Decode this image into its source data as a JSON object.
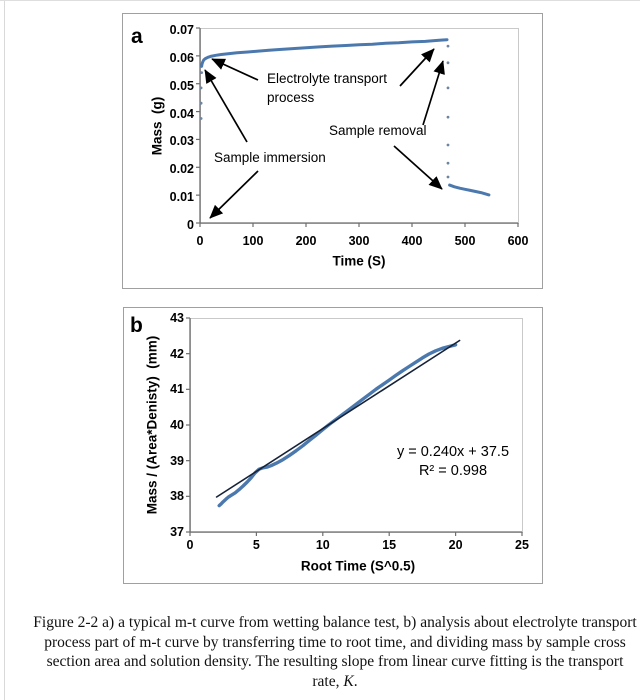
{
  "page": {
    "background": "#ffffff",
    "border_color": "#d9d9d9"
  },
  "colors": {
    "series_blue": "#4c79ad",
    "scatter_dot": "#6d84a3",
    "fit_line": "#152238",
    "panel_border": "#a0a0a0",
    "plot_border": "#c9c9c9",
    "axis_line": "#6e6e6e"
  },
  "panel_a": {
    "label": "a",
    "ylabel": "Mass  (g)",
    "xlabel": "Time (S)",
    "annotations": {
      "electrolyte_line1": "Electrolyte transport",
      "electrolyte_line2": "process",
      "immersion": "Sample immersion",
      "removal": "Sample removal"
    }
  },
  "panel_b": {
    "label": "b",
    "ylabel": "Mass / (Area*Denisty)  (mm)",
    "xlabel": "Root Time (S^0.5)",
    "fit_equation": "y = 0.240x + 37.5",
    "fit_r2": "R² = 0.998"
  },
  "caption": {
    "lines": [
      "Figure 2-2 a) a typical m-t curve from wetting balance test, b) analysis about electrolyte transport",
      "process part of m-t curve by transferring time to root time, and dividing mass by sample cross",
      "section area and solution density. The resulting slope from linear curve fitting is the transport"
    ],
    "rate_prefix": "rate, ",
    "rate_k": "K",
    "rate_suffix": "."
  },
  "chart_data": [
    {
      "id": "a",
      "type": "line",
      "title": "",
      "xlabel": "Time (S)",
      "ylabel": "Mass (g)",
      "xlim": [
        0,
        600
      ],
      "ylim": [
        0,
        0.07
      ],
      "grid": false,
      "xticks": [
        {
          "v": 0,
          "label": "0"
        },
        {
          "v": 100,
          "label": "100"
        },
        {
          "v": 200,
          "label": "200"
        },
        {
          "v": 300,
          "label": "300"
        },
        {
          "v": 400,
          "label": "400"
        },
        {
          "v": 500,
          "label": "500"
        },
        {
          "v": 600,
          "label": "600"
        }
      ],
      "yticks": [
        {
          "v": 0,
          "label": "0"
        },
        {
          "v": 0.01,
          "label": "0.01"
        },
        {
          "v": 0.02,
          "label": "0.02"
        },
        {
          "v": 0.03,
          "label": "0.03"
        },
        {
          "v": 0.04,
          "label": "0.04"
        },
        {
          "v": 0.05,
          "label": "0.05"
        },
        {
          "v": 0.06,
          "label": "0.06"
        },
        {
          "v": 0.07,
          "label": "0.07"
        }
      ],
      "annotations": [
        "Electrolyte transport process",
        "Sample immersion",
        "Sample removal"
      ],
      "series": [
        {
          "name": "sample immersion jump (dots)",
          "type": "scatter",
          "color": "#6d84a3",
          "r": 1.4,
          "points": [
            [
              2,
              0.0375
            ],
            [
              2,
              0.043
            ],
            [
              2,
              0.0485
            ],
            [
              3,
              0.054
            ]
          ]
        },
        {
          "name": "electrolyte transport curve",
          "type": "line",
          "color": "#4c79ad",
          "width": 3,
          "points": [
            [
              3,
              0.0562
            ],
            [
              4,
              0.0572
            ],
            [
              5,
              0.0578
            ],
            [
              7,
              0.0585
            ],
            [
              10,
              0.059
            ],
            [
              15,
              0.0595
            ],
            [
              20,
              0.0598
            ],
            [
              30,
              0.0602
            ],
            [
              40,
              0.0605
            ],
            [
              55,
              0.0608
            ],
            [
              70,
              0.0611
            ],
            [
              90,
              0.0614
            ],
            [
              110,
              0.0617
            ],
            [
              130,
              0.062
            ],
            [
              150,
              0.0623
            ],
            [
              175,
              0.0626
            ],
            [
              200,
              0.0629
            ],
            [
              225,
              0.0632
            ],
            [
              250,
              0.0635
            ],
            [
              275,
              0.0637
            ],
            [
              300,
              0.064
            ],
            [
              325,
              0.0642
            ],
            [
              350,
              0.0645
            ],
            [
              375,
              0.0647
            ],
            [
              400,
              0.065
            ],
            [
              425,
              0.0652
            ],
            [
              445,
              0.0655
            ],
            [
              458,
              0.0657
            ],
            [
              466,
              0.0658
            ]
          ]
        },
        {
          "name": "sample removal drop (dots)",
          "type": "scatter",
          "color": "#6d84a3",
          "r": 1.4,
          "points": [
            [
              468,
              0.0635
            ],
            [
              468,
              0.0575
            ],
            [
              468,
              0.0485
            ],
            [
              468,
              0.038
            ],
            [
              468,
              0.028
            ],
            [
              468,
              0.0215
            ],
            [
              468,
              0.0165
            ]
          ]
        },
        {
          "name": "after removal curve",
          "type": "line",
          "color": "#4c79ad",
          "width": 3,
          "points": [
            [
              471,
              0.0136
            ],
            [
              480,
              0.013
            ],
            [
              490,
              0.0125
            ],
            [
              500,
              0.0121
            ],
            [
              510,
              0.0117
            ],
            [
              520,
              0.0113
            ],
            [
              530,
              0.0109
            ],
            [
              538,
              0.0105
            ],
            [
              545,
              0.0101
            ]
          ]
        }
      ]
    },
    {
      "id": "b",
      "type": "line",
      "title": "",
      "xlabel": "Root Time (S^0.5)",
      "ylabel": "Mass / (Area*Denisty) (mm)",
      "xlim": [
        0,
        25
      ],
      "ylim": [
        37,
        43
      ],
      "grid": false,
      "fit": {
        "equation": "y = 0.240x + 37.5",
        "slope": 0.24,
        "intercept": 37.5,
        "r2": 0.998
      },
      "xticks": [
        {
          "v": 0,
          "label": "0"
        },
        {
          "v": 5,
          "label": "5"
        },
        {
          "v": 10,
          "label": "10"
        },
        {
          "v": 15,
          "label": "15"
        },
        {
          "v": 20,
          "label": "20"
        },
        {
          "v": 25,
          "label": "25"
        }
      ],
      "yticks": [
        {
          "v": 37,
          "label": "37"
        },
        {
          "v": 38,
          "label": "38"
        },
        {
          "v": 39,
          "label": "39"
        },
        {
          "v": 40,
          "label": "40"
        },
        {
          "v": 41,
          "label": "41"
        },
        {
          "v": 42,
          "label": "42"
        },
        {
          "v": 43,
          "label": "43"
        }
      ],
      "series": [
        {
          "name": "measured data",
          "type": "line",
          "color": "#4c79ad",
          "width": 3.4,
          "points": [
            [
              2.2,
              37.74
            ],
            [
              2.35,
              37.79
            ],
            [
              2.5,
              37.85
            ],
            [
              2.7,
              37.92
            ],
            [
              2.9,
              37.98
            ],
            [
              3.1,
              38.03
            ],
            [
              3.4,
              38.1
            ],
            [
              3.7,
              38.19
            ],
            [
              4.0,
              38.29
            ],
            [
              4.3,
              38.4
            ],
            [
              4.6,
              38.52
            ],
            [
              4.9,
              38.66
            ],
            [
              5.2,
              38.76
            ],
            [
              5.5,
              38.8
            ],
            [
              5.8,
              38.82
            ],
            [
              6.1,
              38.86
            ],
            [
              6.5,
              38.93
            ],
            [
              7.0,
              39.03
            ],
            [
              7.5,
              39.15
            ],
            [
              8.0,
              39.28
            ],
            [
              8.5,
              39.42
            ],
            [
              9.0,
              39.57
            ],
            [
              9.5,
              39.72
            ],
            [
              10.0,
              39.87
            ],
            [
              10.5,
              40.02
            ],
            [
              11.0,
              40.16
            ],
            [
              11.5,
              40.3
            ],
            [
              12.0,
              40.44
            ],
            [
              12.5,
              40.58
            ],
            [
              13.0,
              40.72
            ],
            [
              13.5,
              40.86
            ],
            [
              14.0,
              41.0
            ],
            [
              14.5,
              41.13
            ],
            [
              15.0,
              41.26
            ],
            [
              15.5,
              41.39
            ],
            [
              16.0,
              41.52
            ],
            [
              16.5,
              41.64
            ],
            [
              17.0,
              41.76
            ],
            [
              17.5,
              41.88
            ],
            [
              18.0,
              41.99
            ],
            [
              18.5,
              42.08
            ],
            [
              19.0,
              42.15
            ],
            [
              19.5,
              42.2
            ],
            [
              20.0,
              42.25
            ]
          ]
        },
        {
          "name": "linear fit",
          "type": "line",
          "color": "#152238",
          "width": 1.6,
          "points": [
            [
              2.0,
              37.98
            ],
            [
              20.3,
              42.37
            ]
          ]
        }
      ]
    }
  ]
}
